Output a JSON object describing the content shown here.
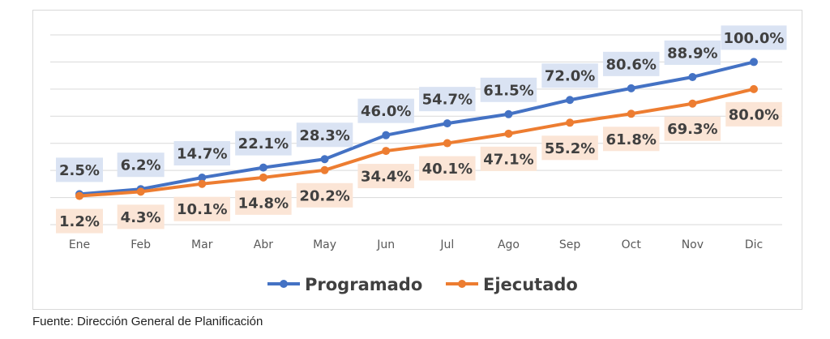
{
  "chart_data": {
    "type": "line",
    "categories": [
      "Ene",
      "Feb",
      "Mar",
      "Abr",
      "May",
      "Jun",
      "Jul",
      "Ago",
      "Sep",
      "Oct",
      "Nov",
      "Dic"
    ],
    "series": [
      {
        "name": "Programado",
        "color": "#4472c4",
        "label_bg": "#dae3f3",
        "values": [
          2.5,
          6.2,
          14.7,
          22.1,
          28.3,
          46.0,
          54.7,
          61.5,
          72.0,
          80.6,
          88.9,
          100.0
        ],
        "labels": [
          "2.5%",
          "6.2%",
          "14.7%",
          "22.1%",
          "28.3%",
          "46.0%",
          "54.7%",
          "61.5%",
          "72.0%",
          "80.6%",
          "88.9%",
          "100.0%"
        ]
      },
      {
        "name": "Ejecutado",
        "color": "#ed7d31",
        "label_bg": "#fbe5d6",
        "values": [
          1.2,
          4.3,
          10.1,
          14.8,
          20.2,
          34.4,
          40.1,
          47.1,
          55.2,
          61.8,
          69.3,
          80.0
        ],
        "labels": [
          "1.2%",
          "4.3%",
          "10.1%",
          "14.8%",
          "20.2%",
          "34.4%",
          "40.1%",
          "47.1%",
          "55.2%",
          "61.8%",
          "69.3%",
          "80.0%"
        ]
      }
    ],
    "ylim": [
      -20,
      120
    ],
    "grid_step": 20,
    "grid": true,
    "legend": "bottom",
    "title": "",
    "xlabel": "",
    "ylabel": ""
  },
  "source": "Fuente: Dirección General de Planificación"
}
